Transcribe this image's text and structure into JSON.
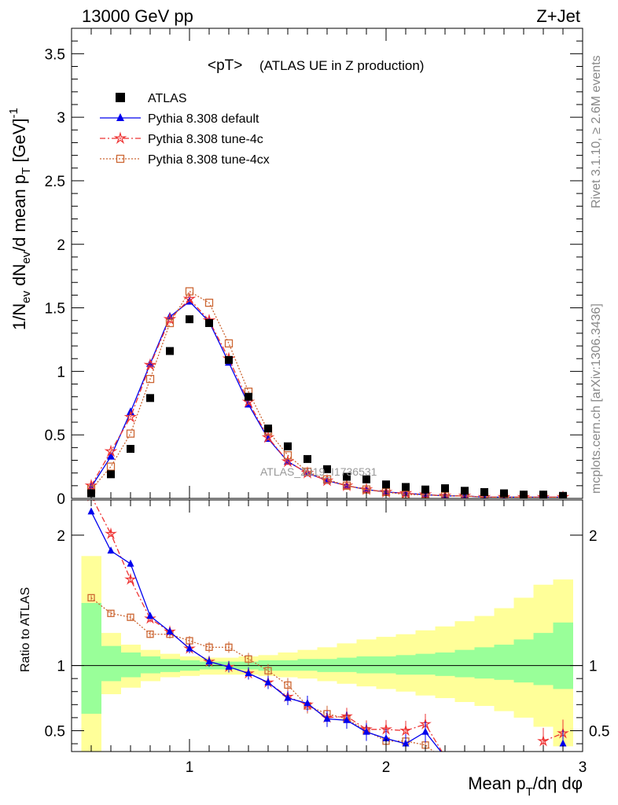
{
  "header": {
    "left": "13000 GeV pp",
    "right": "Z+Jet"
  },
  "side": {
    "rivet": "Rivet 3.1.10, ≥ 2.6M events",
    "mcplots": "mcplots.cern.ch [arXiv:1306.3436]"
  },
  "watermark": "ATLAS_2019_I1736531",
  "chart_data": {
    "type": "scatter",
    "title_main": "<pT>",
    "title_sub": "(ATLAS UE in Z production)",
    "ylabel": "1/N_ev dN_ev/d mean p_T [GeV]^-1",
    "ratio_ylabel": "Ratio to ATLAS",
    "xlabel": "Mean p_T/dη dφ",
    "xlim": [
      0.4,
      3.0
    ],
    "ylim": [
      0,
      3.7
    ],
    "ratio_ylim": [
      0.34,
      2.27
    ],
    "x_ticks": [
      "1",
      "2",
      "3"
    ],
    "y_ticks": [
      "0",
      "0.5",
      "1",
      "1.5",
      "2",
      "2.5",
      "3",
      "3.5"
    ],
    "ratio_ticks": [
      "0.5",
      "1",
      "2"
    ],
    "legend_position": "top-left",
    "x": [
      0.5,
      0.6,
      0.7,
      0.8,
      0.9,
      1.0,
      1.1,
      1.2,
      1.3,
      1.4,
      1.5,
      1.6,
      1.7,
      1.8,
      1.9,
      2.0,
      2.1,
      2.2,
      2.3,
      2.4,
      2.5,
      2.6,
      2.7,
      2.8,
      2.9
    ],
    "series": [
      {
        "name": "ATLAS",
        "color": "#000000",
        "marker": "square",
        "values": [
          0.04,
          0.19,
          0.39,
          0.79,
          1.16,
          1.41,
          1.38,
          1.09,
          0.8,
          0.55,
          0.41,
          0.31,
          0.23,
          0.17,
          0.15,
          0.11,
          0.09,
          0.07,
          0.08,
          0.06,
          0.05,
          0.04,
          0.03,
          0.03,
          0.02
        ]
      },
      {
        "name": "Pythia 8.308 default",
        "color": "#0000ee",
        "marker": "triangle",
        "dash": "solid",
        "values": [
          0.09,
          0.33,
          0.68,
          1.06,
          1.43,
          1.55,
          1.39,
          1.07,
          0.74,
          0.47,
          0.29,
          0.2,
          0.14,
          0.1,
          0.07,
          0.05,
          0.04,
          0.03,
          0.02,
          0.02,
          0.01,
          0.01,
          0.01,
          0.01,
          0.01
        ],
        "ratio": [
          2.18,
          1.88,
          1.78,
          1.38,
          1.26,
          1.13,
          1.03,
          0.99,
          0.94,
          0.87,
          0.75,
          0.71,
          0.59,
          0.58,
          0.49,
          0.44,
          0.4,
          0.49,
          0.3,
          null,
          null,
          null,
          null,
          null,
          0.4
        ]
      },
      {
        "name": "Pythia 8.308 tune-4c",
        "color": "#ee3333",
        "marker": "star",
        "dash": "dashdot",
        "values": [
          0.1,
          0.37,
          0.64,
          1.05,
          1.41,
          1.57,
          1.4,
          1.1,
          0.76,
          0.48,
          0.29,
          0.2,
          0.14,
          0.1,
          0.07,
          0.05,
          0.04,
          0.03,
          0.02,
          0.02,
          0.01,
          0.01,
          0.01,
          0.01,
          0.01
        ],
        "ratio": [
          2.3,
          2.01,
          1.66,
          1.36,
          1.26,
          1.13,
          1.03,
          0.99,
          0.94,
          0.87,
          0.76,
          0.7,
          0.6,
          0.61,
          0.51,
          0.51,
          0.5,
          0.55,
          0.3,
          null,
          null,
          null,
          null,
          0.42,
          0.48
        ]
      },
      {
        "name": "Pythia 8.308 tune-4cx",
        "color": "#cc6633",
        "marker": "opensquare",
        "dash": "dotted",
        "values": [
          0.07,
          0.25,
          0.51,
          0.94,
          1.38,
          1.63,
          1.54,
          1.22,
          0.84,
          0.53,
          0.34,
          0.21,
          0.15,
          0.1,
          0.07,
          0.05,
          0.03,
          0.03,
          0.02,
          0.02,
          0.01,
          0.01,
          0.01,
          0.01,
          0.01
        ],
        "ratio": [
          1.52,
          1.4,
          1.37,
          1.24,
          1.24,
          1.19,
          1.14,
          1.14,
          1.05,
          0.96,
          0.85,
          0.69,
          0.63,
          0.59,
          0.5,
          0.42,
          0.42,
          0.39,
          0.27,
          null,
          null,
          null,
          null,
          null,
          null
        ]
      }
    ],
    "bands": {
      "edges": [
        0.45,
        0.55,
        0.65,
        0.75,
        0.85,
        0.95,
        1.05,
        1.15,
        1.25,
        1.35,
        1.45,
        1.55,
        1.65,
        1.75,
        1.85,
        1.95,
        2.05,
        2.15,
        2.25,
        2.35,
        2.45,
        2.55,
        2.65,
        2.75,
        2.85,
        2.95
      ],
      "green": [
        [
          0.63,
          1.48
        ],
        [
          0.88,
          1.15
        ],
        [
          0.91,
          1.1
        ],
        [
          0.94,
          1.07
        ],
        [
          0.95,
          1.05
        ],
        [
          0.96,
          1.04
        ],
        [
          0.97,
          1.03
        ],
        [
          0.97,
          1.03
        ],
        [
          0.97,
          1.03
        ],
        [
          0.96,
          1.04
        ],
        [
          0.96,
          1.04
        ],
        [
          0.96,
          1.05
        ],
        [
          0.95,
          1.05
        ],
        [
          0.95,
          1.06
        ],
        [
          0.94,
          1.07
        ],
        [
          0.94,
          1.07
        ],
        [
          0.93,
          1.08
        ],
        [
          0.93,
          1.09
        ],
        [
          0.92,
          1.1
        ],
        [
          0.91,
          1.12
        ],
        [
          0.9,
          1.14
        ],
        [
          0.89,
          1.16
        ],
        [
          0.87,
          1.2
        ],
        [
          0.85,
          1.25
        ],
        [
          0.82,
          1.33
        ]
      ],
      "yellow": [
        [
          0.34,
          1.84
        ],
        [
          0.78,
          1.25
        ],
        [
          0.83,
          1.16
        ],
        [
          0.88,
          1.12
        ],
        [
          0.91,
          1.09
        ],
        [
          0.92,
          1.07
        ],
        [
          0.93,
          1.06
        ],
        [
          0.93,
          1.06
        ],
        [
          0.93,
          1.07
        ],
        [
          0.92,
          1.08
        ],
        [
          0.91,
          1.1
        ],
        [
          0.9,
          1.12
        ],
        [
          0.88,
          1.14
        ],
        [
          0.86,
          1.17
        ],
        [
          0.84,
          1.2
        ],
        [
          0.82,
          1.22
        ],
        [
          0.8,
          1.24
        ],
        [
          0.77,
          1.27
        ],
        [
          0.75,
          1.3
        ],
        [
          0.72,
          1.34
        ],
        [
          0.69,
          1.38
        ],
        [
          0.65,
          1.44
        ],
        [
          0.6,
          1.52
        ],
        [
          0.53,
          1.62
        ],
        [
          0.38,
          1.66
        ]
      ]
    }
  }
}
